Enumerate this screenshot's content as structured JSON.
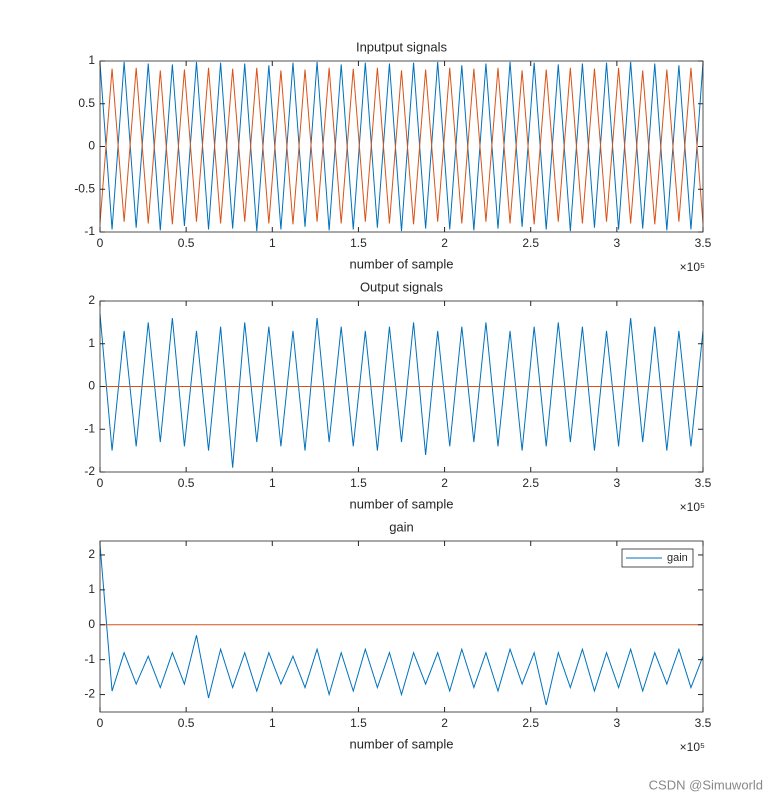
{
  "chart_data": [
    {
      "type": "line",
      "title": "Inputput signals",
      "xlabel": "number of sample",
      "x_exponent": "×10⁵",
      "xlim": [
        0,
        350000
      ],
      "ylim": [
        -1,
        1
      ],
      "xticks": [
        0,
        {
          "value": 50000,
          "label": "0.5"
        },
        {
          "value": 100000,
          "label": "1"
        },
        {
          "value": 150000,
          "label": "1.5"
        },
        {
          "value": 200000,
          "label": "2"
        },
        {
          "value": 250000,
          "label": "2.5"
        },
        {
          "value": 300000,
          "label": "3"
        },
        {
          "value": 350000,
          "label": "3.5"
        }
      ],
      "yticks": [
        -1,
        -0.5,
        0,
        0.5,
        1
      ],
      "x": [
        0,
        7000,
        14000,
        21000,
        28000,
        35000,
        42000,
        49000,
        56000,
        63000,
        70000,
        77000,
        84000,
        91000,
        98000,
        105000,
        112000,
        119000,
        126000,
        133000,
        140000,
        147000,
        154000,
        161000,
        168000,
        175000,
        182000,
        189000,
        196000,
        203000,
        210000,
        217000,
        224000,
        231000,
        238000,
        245000,
        252000,
        259000,
        266000,
        273000,
        280000,
        287000,
        294000,
        301000,
        308000,
        315000,
        322000,
        329000,
        336000,
        343000,
        350000
      ],
      "series": [
        {
          "color": "#0072BD",
          "values": [
            0.98,
            -0.97,
            0.99,
            -0.95,
            0.97,
            -0.98,
            0.96,
            -0.93,
            0.99,
            -0.97,
            0.98,
            -0.96,
            0.97,
            -0.99,
            0.95,
            -0.97,
            0.98,
            -0.94,
            0.99,
            -0.98,
            0.96,
            -0.97,
            0.98,
            -0.95,
            0.97,
            -0.99,
            0.98,
            -0.96,
            0.99,
            -0.97,
            0.95,
            -0.98,
            0.97,
            -0.96,
            0.99,
            -0.94,
            0.98,
            -0.97,
            0.96,
            -0.99,
            0.97,
            -0.95,
            0.98,
            -0.97,
            0.99,
            -0.96,
            0.97,
            -0.98,
            0.95,
            -0.97,
            0.98
          ]
        },
        {
          "color": "#D95319",
          "values": [
            -0.9,
            0.91,
            -0.88,
            0.92,
            -0.9,
            0.89,
            -0.91,
            0.9,
            -0.88,
            0.92,
            -0.9,
            0.91,
            -0.88,
            0.92,
            -0.9,
            0.89,
            -0.91,
            0.9,
            -0.88,
            0.92,
            -0.9,
            0.91,
            -0.88,
            0.92,
            -0.9,
            0.89,
            -0.91,
            0.9,
            -0.88,
            0.92,
            -0.9,
            0.91,
            -0.88,
            0.92,
            -0.9,
            0.89,
            -0.91,
            0.9,
            -0.88,
            0.92,
            -0.9,
            0.91,
            -0.88,
            0.92,
            -0.9,
            0.89,
            -0.91,
            0.9,
            -0.88,
            0.92,
            -0.9
          ]
        }
      ]
    },
    {
      "type": "line",
      "title": "Output signals",
      "xlabel": "number of sample",
      "x_exponent": "×10⁵",
      "xlim": [
        0,
        350000
      ],
      "ylim": [
        -2,
        2
      ],
      "xticks": [
        0,
        {
          "value": 50000,
          "label": "0.5"
        },
        {
          "value": 100000,
          "label": "1"
        },
        {
          "value": 150000,
          "label": "1.5"
        },
        {
          "value": 200000,
          "label": "2"
        },
        {
          "value": 250000,
          "label": "2.5"
        },
        {
          "value": 300000,
          "label": "3"
        },
        {
          "value": 350000,
          "label": "3.5"
        }
      ],
      "yticks": [
        -2,
        -1,
        0,
        1,
        2
      ],
      "x": [
        0,
        7000,
        14000,
        21000,
        28000,
        35000,
        42000,
        49000,
        56000,
        63000,
        70000,
        77000,
        84000,
        91000,
        98000,
        105000,
        112000,
        119000,
        126000,
        133000,
        140000,
        147000,
        154000,
        161000,
        168000,
        175000,
        182000,
        189000,
        196000,
        203000,
        210000,
        217000,
        224000,
        231000,
        238000,
        245000,
        252000,
        259000,
        266000,
        273000,
        280000,
        287000,
        294000,
        301000,
        308000,
        315000,
        322000,
        329000,
        336000,
        343000,
        350000
      ],
      "series": [
        {
          "color": "#0072BD",
          "values": [
            1.7,
            -1.5,
            1.3,
            -1.4,
            1.5,
            -1.3,
            1.6,
            -1.4,
            1.3,
            -1.5,
            1.4,
            -1.9,
            1.5,
            -1.3,
            1.4,
            -1.4,
            1.3,
            -1.5,
            1.6,
            -1.3,
            1.4,
            -1.4,
            1.3,
            -1.5,
            1.4,
            -1.3,
            1.5,
            -1.6,
            1.3,
            -1.4,
            1.4,
            -1.3,
            1.5,
            -1.4,
            1.3,
            -1.5,
            1.4,
            -1.4,
            1.5,
            -1.3,
            1.4,
            -1.5,
            1.3,
            -1.4,
            1.6,
            -1.3,
            1.4,
            -1.5,
            1.3,
            -1.4,
            1.3
          ]
        },
        {
          "color": "#D95319",
          "x": [
            0,
            350000
          ],
          "values": [
            0,
            0
          ]
        }
      ]
    },
    {
      "type": "line",
      "title": "gain",
      "xlabel": "number of sample",
      "x_exponent": "×10⁵",
      "xlim": [
        0,
        350000
      ],
      "ylim": [
        -2.5,
        2.4
      ],
      "xticks": [
        0,
        {
          "value": 50000,
          "label": "0.5"
        },
        {
          "value": 100000,
          "label": "1"
        },
        {
          "value": 150000,
          "label": "1.5"
        },
        {
          "value": 200000,
          "label": "2"
        },
        {
          "value": 250000,
          "label": "2.5"
        },
        {
          "value": 300000,
          "label": "3"
        },
        {
          "value": 350000,
          "label": "3.5"
        }
      ],
      "yticks": [
        -2,
        -1,
        0,
        1,
        2
      ],
      "legend": "northeast",
      "x": [
        0,
        7000,
        14000,
        21000,
        28000,
        35000,
        42000,
        49000,
        56000,
        63000,
        70000,
        77000,
        84000,
        91000,
        98000,
        105000,
        112000,
        119000,
        126000,
        133000,
        140000,
        147000,
        154000,
        161000,
        168000,
        175000,
        182000,
        189000,
        196000,
        203000,
        210000,
        217000,
        224000,
        231000,
        238000,
        245000,
        252000,
        259000,
        266000,
        273000,
        280000,
        287000,
        294000,
        301000,
        308000,
        315000,
        322000,
        329000,
        336000,
        343000,
        350000
      ],
      "series": [
        {
          "name": "gain",
          "color": "#0072BD",
          "values": [
            2.3,
            -1.9,
            -0.8,
            -1.7,
            -0.9,
            -1.8,
            -0.8,
            -1.7,
            -0.3,
            -2.1,
            -0.7,
            -1.8,
            -0.8,
            -1.9,
            -0.8,
            -1.7,
            -0.9,
            -1.8,
            -0.7,
            -2.0,
            -0.8,
            -1.9,
            -0.7,
            -1.8,
            -0.8,
            -2.0,
            -0.8,
            -1.7,
            -0.8,
            -1.9,
            -0.7,
            -1.8,
            -0.8,
            -1.9,
            -0.7,
            -1.7,
            -0.8,
            -2.3,
            -0.8,
            -1.8,
            -0.7,
            -1.9,
            -0.8,
            -1.8,
            -0.7,
            -1.9,
            -0.8,
            -1.7,
            -0.7,
            -1.8,
            -0.9
          ]
        },
        {
          "color": "#D95319",
          "x": [
            0,
            350000
          ],
          "values": [
            0,
            0
          ]
        }
      ]
    }
  ],
  "watermark": "CSDN @Simuworld"
}
